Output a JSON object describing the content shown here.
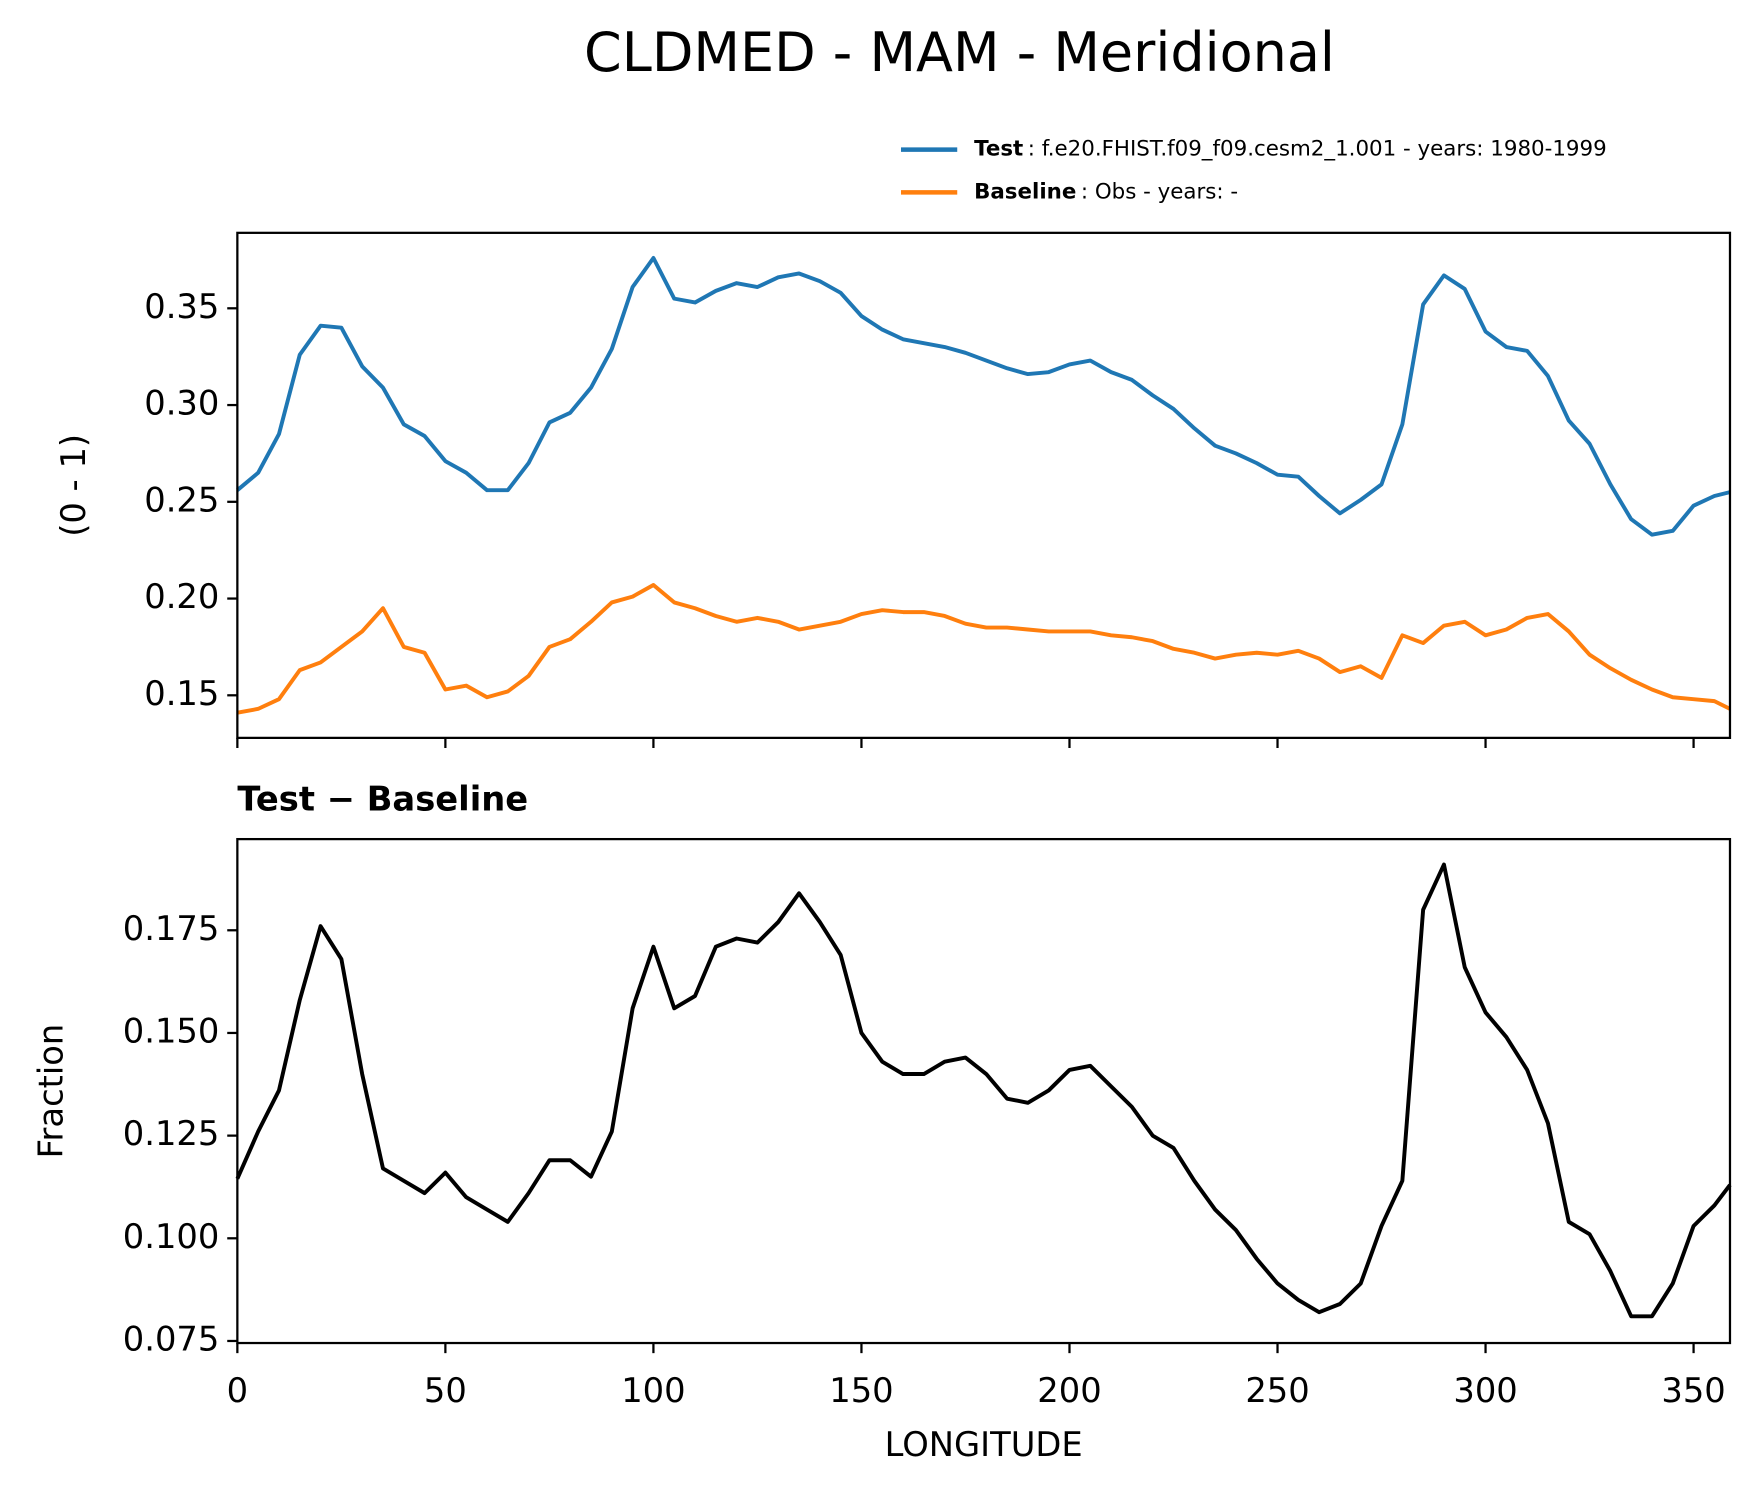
{
  "chart_data": [
    {
      "type": "line",
      "title": "CLDMED - MAM - Meridional",
      "ylabel": "(0 - 1)",
      "x": [
        0,
        5,
        10,
        15,
        20,
        25,
        30,
        35,
        40,
        45,
        50,
        55,
        60,
        65,
        70,
        75,
        80,
        85,
        90,
        95,
        100,
        105,
        110,
        115,
        120,
        125,
        130,
        135,
        140,
        145,
        150,
        155,
        160,
        165,
        170,
        175,
        180,
        185,
        190,
        195,
        200,
        205,
        210,
        215,
        220,
        225,
        230,
        235,
        240,
        245,
        250,
        255,
        260,
        265,
        270,
        275,
        280,
        285,
        290,
        295,
        300,
        305,
        310,
        315,
        320,
        325,
        330,
        335,
        340,
        345,
        350,
        355,
        358.75
      ],
      "series": [
        {
          "name": "Test",
          "detail": ": f.e20.FHIST.f09_f09.cesm2_1.001 - years: 1980-1999",
          "color": "#1f77b4",
          "values": [
            0.256,
            0.265,
            0.285,
            0.326,
            0.341,
            0.34,
            0.32,
            0.309,
            0.29,
            0.284,
            0.271,
            0.265,
            0.256,
            0.256,
            0.27,
            0.291,
            0.296,
            0.309,
            0.329,
            0.361,
            0.376,
            0.355,
            0.353,
            0.359,
            0.363,
            0.361,
            0.366,
            0.368,
            0.364,
            0.358,
            0.346,
            0.339,
            0.334,
            0.332,
            0.33,
            0.327,
            0.323,
            0.319,
            0.316,
            0.317,
            0.321,
            0.323,
            0.317,
            0.313,
            0.305,
            0.298,
            0.288,
            0.279,
            0.275,
            0.27,
            0.264,
            0.263,
            0.253,
            0.244,
            0.251,
            0.259,
            0.29,
            0.352,
            0.367,
            0.36,
            0.338,
            0.33,
            0.328,
            0.315,
            0.292,
            0.28,
            0.259,
            0.241,
            0.233,
            0.235,
            0.248,
            0.253,
            0.255
          ]
        },
        {
          "name": "Baseline",
          "detail": ": Obs - years: -",
          "color": "#ff7f0e",
          "values": [
            0.141,
            0.143,
            0.148,
            0.163,
            0.167,
            0.175,
            0.183,
            0.195,
            0.175,
            0.172,
            0.153,
            0.155,
            0.149,
            0.152,
            0.16,
            0.175,
            0.179,
            0.188,
            0.198,
            0.201,
            0.207,
            0.198,
            0.195,
            0.191,
            0.188,
            0.19,
            0.188,
            0.184,
            0.186,
            0.188,
            0.192,
            0.194,
            0.193,
            0.193,
            0.191,
            0.187,
            0.185,
            0.185,
            0.184,
            0.183,
            0.183,
            0.183,
            0.181,
            0.18,
            0.178,
            0.174,
            0.172,
            0.169,
            0.171,
            0.172,
            0.171,
            0.173,
            0.169,
            0.162,
            0.165,
            0.159,
            0.181,
            0.177,
            0.186,
            0.188,
            0.181,
            0.184,
            0.19,
            0.192,
            0.183,
            0.171,
            0.164,
            0.158,
            0.153,
            0.149,
            0.148,
            0.147,
            0.143
          ]
        }
      ],
      "xlim": [
        0,
        358.75
      ],
      "xticks": [
        0,
        50,
        100,
        150,
        200,
        250,
        300,
        350
      ],
      "ylim": [
        0.128,
        0.389
      ],
      "yticks": [
        {
          "value": 0.15,
          "label": "0.15"
        },
        {
          "value": 0.2,
          "label": "0.20"
        },
        {
          "value": 0.25,
          "label": "0.25"
        },
        {
          "value": 0.3,
          "label": "0.30"
        },
        {
          "value": 0.35,
          "label": "0.35"
        }
      ]
    },
    {
      "type": "line",
      "title": "Test − Baseline",
      "ylabel": "Fraction",
      "xlabel": "LONGITUDE",
      "x": [
        0,
        5,
        10,
        15,
        20,
        25,
        30,
        35,
        40,
        45,
        50,
        55,
        60,
        65,
        70,
        75,
        80,
        85,
        90,
        95,
        100,
        105,
        110,
        115,
        120,
        125,
        130,
        135,
        140,
        145,
        150,
        155,
        160,
        165,
        170,
        175,
        180,
        185,
        190,
        195,
        200,
        205,
        210,
        215,
        220,
        225,
        230,
        235,
        240,
        245,
        250,
        255,
        260,
        265,
        270,
        275,
        280,
        285,
        290,
        295,
        300,
        305,
        310,
        315,
        320,
        325,
        330,
        335,
        340,
        345,
        350,
        355,
        358.75
      ],
      "series": [
        {
          "color": "#000000",
          "values": [
            0.1145,
            0.126,
            0.136,
            0.158,
            0.176,
            0.168,
            0.14,
            0.117,
            0.114,
            0.111,
            0.116,
            0.11,
            0.107,
            0.104,
            0.111,
            0.119,
            0.119,
            0.115,
            0.126,
            0.156,
            0.171,
            0.156,
            0.159,
            0.171,
            0.173,
            0.172,
            0.177,
            0.184,
            0.177,
            0.169,
            0.15,
            0.143,
            0.14,
            0.14,
            0.143,
            0.144,
            0.14,
            0.134,
            0.133,
            0.136,
            0.141,
            0.142,
            0.137,
            0.132,
            0.125,
            0.122,
            0.114,
            0.107,
            0.102,
            0.095,
            0.089,
            0.085,
            0.082,
            0.084,
            0.089,
            0.103,
            0.114,
            0.18,
            0.191,
            0.166,
            0.155,
            0.149,
            0.141,
            0.128,
            0.104,
            0.101,
            0.092,
            0.081,
            0.081,
            0.089,
            0.103,
            0.108,
            0.113
          ]
        }
      ],
      "xlim": [
        0,
        358.75
      ],
      "xticks": [
        0,
        50,
        100,
        150,
        200,
        250,
        300,
        350
      ],
      "ylim": [
        0.0745,
        0.1972
      ],
      "yticks": [
        {
          "value": 0.075,
          "label": "0.075"
        },
        {
          "value": 0.1,
          "label": "0.100"
        },
        {
          "value": 0.125,
          "label": "0.125"
        },
        {
          "value": 0.15,
          "label": "0.150"
        },
        {
          "value": 0.175,
          "label": "0.175"
        }
      ]
    }
  ]
}
